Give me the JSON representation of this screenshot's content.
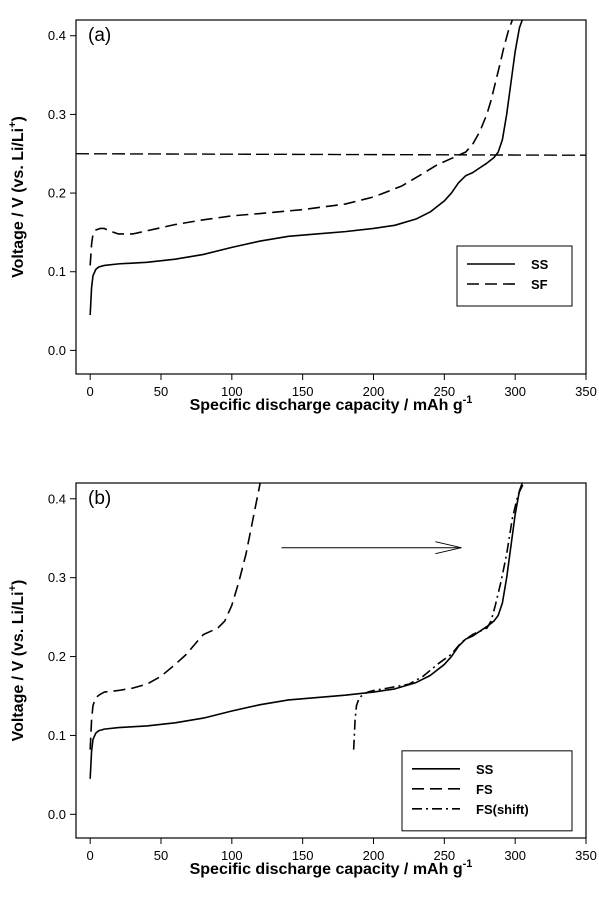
{
  "chart_data": [
    {
      "type": "line",
      "panel_label": "(a)",
      "xlabel": "Specific discharge capacity / mAh g",
      "xlabel_superscript": "-1",
      "ylabel": "Voltage / V (vs. Li/Li",
      "ylabel_superscript": "+",
      "ylabel_end": ")",
      "xlim": [
        -10,
        350
      ],
      "ylim": [
        -0.03,
        0.42
      ],
      "xticks": [
        "0",
        "50",
        "100",
        "150",
        "200",
        "250",
        "300",
        "350"
      ],
      "yticks": [
        "0.0",
        "0.1",
        "0.2",
        "0.3",
        "0.4"
      ],
      "grid": false,
      "legend_position": "lower-right",
      "hline": {
        "y": 0.25,
        "style": "dashed"
      },
      "series": [
        {
          "name": "SS",
          "style": "solid",
          "x": [
            0,
            1,
            2,
            4,
            6,
            10,
            20,
            40,
            60,
            80,
            100,
            120,
            140,
            160,
            180,
            200,
            215,
            230,
            240,
            250,
            255,
            260,
            265,
            270,
            275,
            280,
            285,
            288,
            291,
            294,
            297,
            300,
            303,
            305
          ],
          "y": [
            0.045,
            0.08,
            0.095,
            0.103,
            0.106,
            0.108,
            0.11,
            0.112,
            0.116,
            0.122,
            0.131,
            0.139,
            0.145,
            0.148,
            0.151,
            0.155,
            0.159,
            0.167,
            0.176,
            0.19,
            0.2,
            0.213,
            0.222,
            0.226,
            0.232,
            0.238,
            0.245,
            0.252,
            0.268,
            0.3,
            0.34,
            0.38,
            0.41,
            0.42
          ]
        },
        {
          "name": "SF",
          "style": "dashed",
          "x": [
            0,
            1,
            2,
            4,
            7,
            10,
            15,
            20,
            30,
            40,
            60,
            80,
            100,
            120,
            150,
            180,
            200,
            220,
            235,
            245,
            255,
            265,
            270,
            275,
            280,
            283,
            286,
            289,
            292,
            295,
            298
          ],
          "y": [
            0.108,
            0.135,
            0.148,
            0.153,
            0.155,
            0.155,
            0.151,
            0.148,
            0.148,
            0.152,
            0.16,
            0.166,
            0.171,
            0.174,
            0.179,
            0.186,
            0.195,
            0.209,
            0.225,
            0.236,
            0.244,
            0.252,
            0.262,
            0.278,
            0.3,
            0.318,
            0.34,
            0.362,
            0.385,
            0.405,
            0.42
          ]
        }
      ]
    },
    {
      "type": "line",
      "panel_label": "(b)",
      "xlabel": "Specific discharge capacity / mAh g",
      "xlabel_superscript": "-1",
      "ylabel": "Voltage / V (vs. Li/Li",
      "ylabel_superscript": "+",
      "ylabel_end": ")",
      "xlim": [
        -10,
        350
      ],
      "ylim": [
        -0.03,
        0.42
      ],
      "xticks": [
        "0",
        "50",
        "100",
        "150",
        "200",
        "250",
        "300",
        "350"
      ],
      "yticks": [
        "0.0",
        "0.1",
        "0.2",
        "0.3",
        "0.4"
      ],
      "grid": false,
      "legend_position": "lower-right",
      "arrow": {
        "from": [
          135,
          0.338
        ],
        "to": [
          262,
          0.338
        ]
      },
      "series": [
        {
          "name": "SS",
          "style": "solid",
          "x": [
            0,
            1,
            2,
            4,
            6,
            10,
            20,
            40,
            60,
            80,
            100,
            120,
            140,
            160,
            180,
            200,
            215,
            230,
            240,
            250,
            255,
            260,
            265,
            270,
            275,
            280,
            285,
            288,
            291,
            294,
            297,
            300,
            303,
            305
          ],
          "y": [
            0.045,
            0.08,
            0.095,
            0.103,
            0.106,
            0.108,
            0.11,
            0.112,
            0.116,
            0.122,
            0.131,
            0.139,
            0.145,
            0.148,
            0.151,
            0.155,
            0.159,
            0.167,
            0.176,
            0.19,
            0.2,
            0.213,
            0.222,
            0.226,
            0.232,
            0.238,
            0.245,
            0.252,
            0.268,
            0.3,
            0.34,
            0.38,
            0.41,
            0.42
          ]
        },
        {
          "name": "FS",
          "style": "dashed",
          "x": [
            0,
            1,
            2,
            4,
            7,
            10,
            20,
            30,
            40,
            50,
            60,
            68,
            75,
            80,
            85,
            90,
            95,
            100,
            105,
            110,
            115,
            120
          ],
          "y": [
            0.082,
            0.12,
            0.138,
            0.148,
            0.152,
            0.155,
            0.157,
            0.16,
            0.165,
            0.175,
            0.19,
            0.203,
            0.218,
            0.228,
            0.232,
            0.236,
            0.245,
            0.265,
            0.295,
            0.33,
            0.375,
            0.42
          ]
        },
        {
          "name": "FS(shift)",
          "style": "dashdot",
          "x": [
            186,
            187,
            188,
            190,
            193,
            196,
            200,
            210,
            225,
            235,
            245,
            255,
            262,
            270,
            275,
            280,
            283,
            286,
            290,
            294,
            298,
            302,
            306
          ],
          "y": [
            0.082,
            0.12,
            0.138,
            0.148,
            0.152,
            0.155,
            0.157,
            0.16,
            0.165,
            0.175,
            0.19,
            0.203,
            0.218,
            0.228,
            0.232,
            0.236,
            0.245,
            0.265,
            0.295,
            0.33,
            0.375,
            0.405,
            0.42
          ]
        }
      ]
    }
  ]
}
